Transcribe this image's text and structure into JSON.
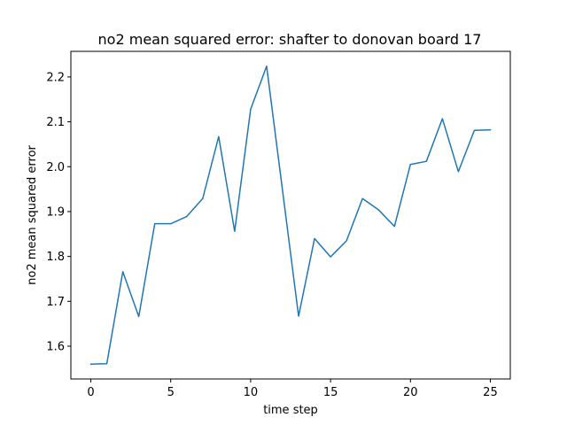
{
  "chart_data": {
    "type": "line",
    "title": "no2 mean squared error: shafter to donovan board 17",
    "xlabel": "time step",
    "ylabel": "no2 mean squared error",
    "xlim": [
      -1.25,
      26.25
    ],
    "ylim": [
      1.527,
      2.257
    ],
    "x_ticks": [
      0,
      5,
      10,
      15,
      20,
      25
    ],
    "y_ticks": [
      1.6,
      1.7,
      1.8,
      1.9,
      2.0,
      2.1,
      2.2
    ],
    "grid": false,
    "series": [
      {
        "color": "#1f77b4",
        "x": [
          0,
          1,
          2,
          3,
          4,
          5,
          6,
          7,
          8,
          9,
          10,
          11,
          12,
          13,
          14,
          15,
          16,
          17,
          18,
          19,
          20,
          21,
          22,
          23,
          24,
          25
        ],
        "values": [
          1.56,
          1.561,
          1.766,
          1.666,
          1.873,
          1.873,
          1.889,
          1.929,
          2.067,
          1.856,
          2.128,
          2.224,
          1.946,
          1.667,
          1.84,
          1.799,
          1.835,
          1.929,
          1.904,
          1.867,
          2.005,
          2.012,
          2.107,
          1.989,
          2.081,
          2.082
        ]
      }
    ]
  }
}
